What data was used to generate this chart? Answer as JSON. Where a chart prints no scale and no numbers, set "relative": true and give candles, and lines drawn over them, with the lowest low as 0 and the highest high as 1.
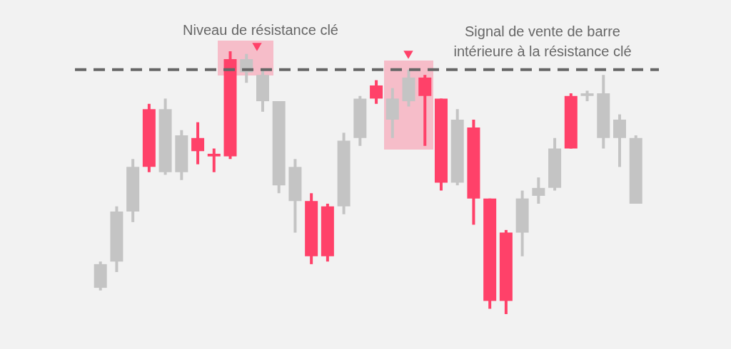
{
  "chart_data": {
    "type": "candlestick",
    "relative": true,
    "categories": [
      null,
      null,
      null,
      null,
      null,
      null,
      null,
      null,
      null,
      null,
      null,
      null,
      null,
      null,
      null,
      null,
      null,
      null,
      null,
      null,
      null,
      null,
      null,
      null,
      null,
      null,
      null,
      null,
      null,
      null,
      null,
      null,
      null,
      null
    ],
    "ohlc": [
      [
        0.19,
        0.2,
        0.09,
        0.1
      ],
      [
        0.39,
        0.41,
        0.16,
        0.2
      ],
      [
        0.56,
        0.59,
        0.35,
        0.39
      ],
      [
        0.56,
        0.8,
        0.54,
        0.78
      ],
      [
        0.78,
        0.82,
        0.53,
        0.54
      ],
      [
        0.68,
        0.7,
        0.51,
        0.54
      ],
      [
        0.62,
        0.73,
        0.57,
        0.67
      ],
      [
        0.6,
        0.63,
        0.54,
        0.61
      ],
      [
        0.6,
        1.0,
        0.59,
        0.97
      ],
      [
        0.97,
        0.99,
        0.88,
        0.92
      ],
      [
        0.91,
        0.93,
        0.77,
        0.81
      ],
      [
        0.81,
        0.81,
        0.46,
        0.49
      ],
      [
        0.56,
        0.59,
        0.31,
        0.43
      ],
      [
        0.22,
        0.46,
        0.19,
        0.43
      ],
      [
        0.22,
        0.42,
        0.2,
        0.41
      ],
      [
        0.66,
        0.69,
        0.38,
        0.41
      ],
      [
        0.82,
        0.83,
        0.64,
        0.67
      ],
      [
        0.82,
        0.89,
        0.8,
        0.87
      ],
      [
        0.82,
        0.86,
        0.67,
        0.74
      ],
      [
        0.9,
        0.93,
        0.79,
        0.81
      ],
      [
        0.83,
        0.91,
        0.64,
        0.9
      ],
      [
        0.5,
        0.82,
        0.47,
        0.82
      ],
      [
        0.74,
        0.78,
        0.49,
        0.5
      ],
      [
        0.44,
        0.74,
        0.34,
        0.71
      ],
      [
        0.05,
        0.44,
        0.02,
        0.44
      ],
      [
        0.05,
        0.32,
        0.0,
        0.31
      ],
      [
        0.44,
        0.47,
        0.22,
        0.31
      ],
      [
        0.48,
        0.52,
        0.42,
        0.45
      ],
      [
        0.63,
        0.67,
        0.47,
        0.48
      ],
      [
        0.63,
        0.84,
        0.63,
        0.83
      ],
      [
        0.84,
        0.85,
        0.81,
        0.83
      ],
      [
        0.84,
        0.91,
        0.63,
        0.67
      ],
      [
        0.74,
        0.76,
        0.56,
        0.67
      ],
      [
        0.67,
        0.68,
        0.42,
        0.42
      ]
    ],
    "colors": [
      "#c4c4c4",
      "#c4c4c4",
      "#c4c4c4",
      "#ff4169",
      "#c4c4c4",
      "#c4c4c4",
      "#ff4169",
      "#ff4169",
      "#ff4169",
      "#c4c4c4",
      "#c4c4c4",
      "#c4c4c4",
      "#c4c4c4",
      "#ff4169",
      "#ff4169",
      "#c4c4c4",
      "#c4c4c4",
      "#ff4169",
      "#c4c4c4",
      "#c4c4c4",
      "#ff4169",
      "#ff4169",
      "#c4c4c4",
      "#ff4169",
      "#ff4169",
      "#ff4169",
      "#c4c4c4",
      "#c4c4c4",
      "#c4c4c4",
      "#ff4169",
      "#c4c4c4",
      "#c4c4c4",
      "#c4c4c4",
      "#c4c4c4"
    ],
    "ref_lines": [
      {
        "axis": "y",
        "value": 0.93,
        "color": "#666666",
        "line_style": "dashed"
      }
    ],
    "annotations": [
      "Niveau de résistance clé",
      "Signal de vente de barre\nintérieure à la résistance clé"
    ]
  }
}
